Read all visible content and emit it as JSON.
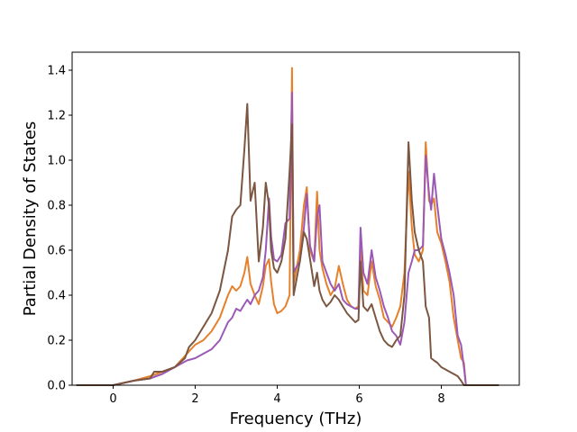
{
  "chart_data": {
    "type": "line",
    "title": "",
    "xlabel": "Frequency (THz)",
    "ylabel": "Partial Density of States",
    "xlim": [
      -1.0,
      9.9
    ],
    "ylim": [
      0.0,
      1.48
    ],
    "xticks": [
      0,
      2,
      4,
      6,
      8
    ],
    "yticks": [
      0.0,
      0.2,
      0.4,
      0.6,
      0.8,
      1.0,
      1.2,
      1.4
    ],
    "xtick_labels": [
      "0",
      "2",
      "4",
      "6",
      "8"
    ],
    "ytick_labels": [
      "0.0",
      "0.2",
      "0.4",
      "0.6",
      "0.8",
      "1.0",
      "1.2",
      "1.4"
    ],
    "grid": false,
    "legend": "none",
    "series": [
      {
        "color": "#e6802a",
        "x": [
          -0.9,
          0.0,
          0.5,
          0.9,
          1.2,
          1.5,
          1.8,
          2.0,
          2.2,
          2.4,
          2.6,
          2.8,
          2.9,
          3.0,
          3.1,
          3.2,
          3.27,
          3.35,
          3.45,
          3.55,
          3.65,
          3.72,
          3.8,
          3.85,
          3.92,
          4.0,
          4.1,
          4.2,
          4.3,
          4.36,
          4.4,
          4.45,
          4.55,
          4.65,
          4.72,
          4.8,
          4.9,
          4.97,
          5.03,
          5.1,
          5.2,
          5.3,
          5.4,
          5.5,
          5.6,
          5.7,
          5.8,
          5.9,
          5.98,
          6.03,
          6.1,
          6.2,
          6.3,
          6.4,
          6.5,
          6.6,
          6.7,
          6.8,
          6.9,
          7.0,
          7.1,
          7.2,
          7.28,
          7.35,
          7.45,
          7.55,
          7.62,
          7.7,
          7.75,
          7.82,
          7.9,
          8.0,
          8.1,
          8.2,
          8.3,
          8.4,
          8.48,
          8.55,
          8.6,
          9.4
        ],
        "y": [
          0.0,
          0.0,
          0.02,
          0.04,
          0.06,
          0.08,
          0.14,
          0.18,
          0.2,
          0.24,
          0.3,
          0.4,
          0.44,
          0.42,
          0.44,
          0.5,
          0.57,
          0.45,
          0.4,
          0.36,
          0.44,
          0.53,
          0.56,
          0.46,
          0.36,
          0.32,
          0.33,
          0.35,
          0.4,
          1.41,
          0.45,
          0.5,
          0.6,
          0.8,
          0.88,
          0.6,
          0.55,
          0.86,
          0.6,
          0.52,
          0.45,
          0.4,
          0.43,
          0.53,
          0.45,
          0.38,
          0.35,
          0.34,
          0.35,
          0.6,
          0.42,
          0.4,
          0.55,
          0.44,
          0.38,
          0.3,
          0.28,
          0.26,
          0.3,
          0.35,
          0.5,
          0.95,
          0.7,
          0.58,
          0.55,
          0.6,
          1.08,
          0.82,
          0.8,
          0.83,
          0.68,
          0.63,
          0.55,
          0.46,
          0.3,
          0.2,
          0.12,
          0.1,
          0.0,
          0.0
        ]
      },
      {
        "color": "#9b59b6",
        "x": [
          -0.9,
          0.0,
          0.5,
          0.9,
          1.2,
          1.5,
          1.8,
          2.0,
          2.2,
          2.4,
          2.6,
          2.8,
          2.9,
          3.0,
          3.1,
          3.2,
          3.27,
          3.35,
          3.45,
          3.55,
          3.65,
          3.72,
          3.8,
          3.85,
          3.92,
          4.0,
          4.1,
          4.2,
          4.3,
          4.36,
          4.4,
          4.45,
          4.55,
          4.65,
          4.72,
          4.8,
          4.9,
          4.97,
          5.03,
          5.1,
          5.2,
          5.3,
          5.4,
          5.5,
          5.6,
          5.7,
          5.8,
          5.9,
          5.98,
          6.03,
          6.1,
          6.2,
          6.3,
          6.4,
          6.5,
          6.6,
          6.7,
          6.8,
          6.9,
          7.0,
          7.1,
          7.2,
          7.28,
          7.35,
          7.45,
          7.55,
          7.62,
          7.7,
          7.75,
          7.82,
          7.9,
          8.0,
          8.1,
          8.2,
          8.3,
          8.4,
          8.48,
          8.55,
          8.6,
          9.4
        ],
        "y": [
          0.0,
          0.0,
          0.02,
          0.03,
          0.05,
          0.08,
          0.11,
          0.12,
          0.14,
          0.16,
          0.2,
          0.28,
          0.3,
          0.34,
          0.33,
          0.36,
          0.38,
          0.36,
          0.4,
          0.42,
          0.48,
          0.6,
          0.83,
          0.66,
          0.56,
          0.55,
          0.58,
          0.72,
          0.74,
          1.3,
          0.5,
          0.52,
          0.55,
          0.7,
          0.85,
          0.62,
          0.55,
          0.75,
          0.8,
          0.55,
          0.5,
          0.45,
          0.42,
          0.45,
          0.38,
          0.36,
          0.35,
          0.34,
          0.34,
          0.7,
          0.5,
          0.45,
          0.6,
          0.48,
          0.42,
          0.35,
          0.3,
          0.24,
          0.22,
          0.18,
          0.28,
          0.5,
          0.55,
          0.6,
          0.6,
          0.62,
          1.02,
          0.85,
          0.78,
          0.94,
          0.8,
          0.65,
          0.58,
          0.5,
          0.4,
          0.22,
          0.18,
          0.08,
          0.0,
          0.0
        ]
      },
      {
        "color": "#7b5640",
        "x": [
          -0.9,
          0.0,
          0.5,
          0.9,
          1.0,
          1.2,
          1.5,
          1.75,
          1.85,
          2.0,
          2.2,
          2.4,
          2.6,
          2.8,
          2.9,
          3.0,
          3.1,
          3.2,
          3.27,
          3.35,
          3.45,
          3.55,
          3.65,
          3.72,
          3.8,
          3.85,
          3.92,
          4.0,
          4.1,
          4.2,
          4.3,
          4.36,
          4.4,
          4.45,
          4.55,
          4.65,
          4.72,
          4.8,
          4.9,
          4.97,
          5.03,
          5.1,
          5.2,
          5.3,
          5.4,
          5.5,
          5.6,
          5.7,
          5.8,
          5.9,
          5.98,
          6.03,
          6.1,
          6.2,
          6.3,
          6.4,
          6.5,
          6.6,
          6.7,
          6.8,
          6.9,
          7.0,
          7.1,
          7.2,
          7.28,
          7.35,
          7.45,
          7.55,
          7.62,
          7.7,
          7.75,
          7.82,
          7.9,
          8.0,
          8.1,
          8.2,
          8.3,
          8.4,
          8.48,
          8.55,
          8.6,
          9.4
        ],
        "y": [
          0.0,
          0.0,
          0.02,
          0.03,
          0.06,
          0.06,
          0.08,
          0.12,
          0.17,
          0.2,
          0.26,
          0.32,
          0.42,
          0.6,
          0.75,
          0.78,
          0.8,
          1.05,
          1.25,
          0.82,
          0.9,
          0.55,
          0.7,
          0.9,
          0.8,
          0.6,
          0.52,
          0.5,
          0.55,
          0.65,
          0.95,
          1.16,
          0.4,
          0.45,
          0.55,
          0.68,
          0.65,
          0.56,
          0.44,
          0.5,
          0.42,
          0.38,
          0.35,
          0.37,
          0.4,
          0.38,
          0.35,
          0.32,
          0.3,
          0.28,
          0.29,
          0.55,
          0.35,
          0.33,
          0.36,
          0.3,
          0.24,
          0.2,
          0.18,
          0.17,
          0.2,
          0.22,
          0.4,
          1.08,
          0.82,
          0.68,
          0.6,
          0.55,
          0.35,
          0.3,
          0.12,
          0.11,
          0.1,
          0.08,
          0.07,
          0.06,
          0.05,
          0.04,
          0.02,
          0.0,
          0.0,
          0.0
        ]
      }
    ]
  }
}
